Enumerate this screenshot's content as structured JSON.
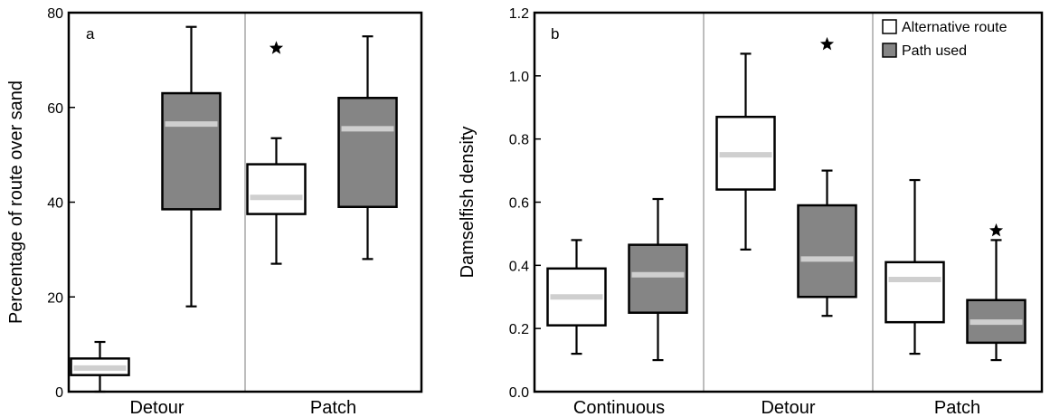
{
  "colors": {
    "alternative_fill": "#ffffff",
    "path_fill": "#858585",
    "median": "#cfcfcf",
    "divider": "#bdbdbd",
    "frame": "#000000"
  },
  "chart_data": [
    {
      "type": "box",
      "panel_label": "a",
      "title": "",
      "xlabel": "",
      "ylabel": "Percentage of route over sand",
      "ylim": [
        0,
        80
      ],
      "yticks": [
        0,
        20,
        40,
        60,
        80
      ],
      "ytick_labels": [
        "0",
        "20",
        "40",
        "60",
        "80"
      ],
      "grid": false,
      "categories": [
        "Detour",
        "Patch"
      ],
      "series": [
        {
          "key": "alternative",
          "boxes": [
            {
              "whisker_low": 0,
              "q1": 3.5,
              "median": 5,
              "q3": 7,
              "whisker_high": 10.5,
              "outlier": null
            },
            {
              "whisker_low": 27,
              "q1": 37.5,
              "median": 41,
              "q3": 48,
              "whisker_high": 53.5,
              "outlier": 72.5
            }
          ]
        },
        {
          "key": "path",
          "boxes": [
            {
              "whisker_low": 18,
              "q1": 38.5,
              "median": 56.5,
              "q3": 63,
              "whisker_high": 77,
              "outlier": null
            },
            {
              "whisker_low": 28,
              "q1": 39,
              "median": 55.5,
              "q3": 62,
              "whisker_high": 75,
              "outlier": null
            }
          ]
        }
      ]
    },
    {
      "type": "box",
      "panel_label": "b",
      "title": "",
      "xlabel": "",
      "ylabel": "Damselfish density",
      "ylim": [
        0,
        1.2
      ],
      "yticks": [
        0,
        0.2,
        0.4,
        0.6,
        0.8,
        1.0,
        1.2
      ],
      "ytick_labels": [
        "0.0",
        "0.2",
        "0.4",
        "0.6",
        "0.8",
        "1.0",
        "1.2"
      ],
      "grid": false,
      "legend_position": "top-right",
      "categories": [
        "Continuous",
        "Detour",
        "Patch"
      ],
      "series": [
        {
          "key": "alternative",
          "name": "Alternative route",
          "boxes": [
            {
              "whisker_low": 0.12,
              "q1": 0.21,
              "median": 0.3,
              "q3": 0.39,
              "whisker_high": 0.48,
              "outlier": null
            },
            {
              "whisker_low": 0.45,
              "q1": 0.64,
              "median": 0.75,
              "q3": 0.87,
              "whisker_high": 1.07,
              "outlier": null
            },
            {
              "whisker_low": 0.12,
              "q1": 0.22,
              "median": 0.355,
              "q3": 0.41,
              "whisker_high": 0.67,
              "outlier": null
            }
          ]
        },
        {
          "key": "path",
          "name": "Path used",
          "boxes": [
            {
              "whisker_low": 0.1,
              "q1": 0.25,
              "median": 0.37,
              "q3": 0.465,
              "whisker_high": 0.61,
              "outlier": null
            },
            {
              "whisker_low": 0.24,
              "q1": 0.3,
              "median": 0.42,
              "q3": 0.59,
              "whisker_high": 0.7,
              "outlier": 1.1
            },
            {
              "whisker_low": 0.1,
              "q1": 0.155,
              "median": 0.22,
              "q3": 0.29,
              "whisker_high": 0.48,
              "outlier": 0.51
            }
          ]
        }
      ]
    }
  ]
}
